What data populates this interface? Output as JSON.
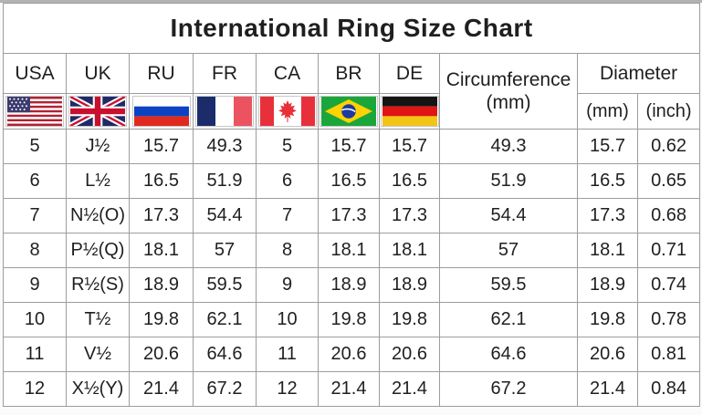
{
  "title": "International Ring Size Chart",
  "header": {
    "countries": [
      {
        "code": "USA",
        "flag_icon": "usa-flag-icon"
      },
      {
        "code": "UK",
        "flag_icon": "uk-flag-icon"
      },
      {
        "code": "RU",
        "flag_icon": "russia-flag-icon"
      },
      {
        "code": "FR",
        "flag_icon": "france-flag-icon"
      },
      {
        "code": "CA",
        "flag_icon": "canada-flag-icon"
      },
      {
        "code": "BR",
        "flag_icon": "brazil-flag-icon"
      },
      {
        "code": "DE",
        "flag_icon": "germany-flag-icon"
      }
    ],
    "circumference": {
      "label": "Circumference",
      "unit": "(mm)"
    },
    "diameter": {
      "label": "Diameter",
      "mm_unit": "(mm)",
      "inch_unit": "(inch)"
    }
  },
  "colors": {
    "border": "#9d9d9d",
    "text": "#1f1f1f",
    "background": "#fbfbfb"
  },
  "chart_data": {
    "type": "table",
    "title": "International Ring Size Chart",
    "columns": [
      "USA",
      "UK",
      "RU",
      "FR",
      "CA",
      "BR",
      "DE",
      "Circumference (mm)",
      "Diameter (mm)",
      "Diameter (inch)"
    ],
    "rows": [
      [
        "5",
        "J½",
        "15.7",
        "49.3",
        "5",
        "15.7",
        "15.7",
        "49.3",
        "15.7",
        "0.62"
      ],
      [
        "6",
        "L½",
        "16.5",
        "51.9",
        "6",
        "16.5",
        "16.5",
        "51.9",
        "16.5",
        "0.65"
      ],
      [
        "7",
        "N½(O)",
        "17.3",
        "54.4",
        "7",
        "17.3",
        "17.3",
        "54.4",
        "17.3",
        "0.68"
      ],
      [
        "8",
        "P½(Q)",
        "18.1",
        "57",
        "8",
        "18.1",
        "18.1",
        "57",
        "18.1",
        "0.71"
      ],
      [
        "9",
        "R½(S)",
        "18.9",
        "59.5",
        "9",
        "18.9",
        "18.9",
        "59.5",
        "18.9",
        "0.74"
      ],
      [
        "10",
        "T½",
        "19.8",
        "62.1",
        "10",
        "19.8",
        "19.8",
        "62.1",
        "19.8",
        "0.78"
      ],
      [
        "11",
        "V½",
        "20.6",
        "64.6",
        "11",
        "20.6",
        "20.6",
        "64.6",
        "20.6",
        "0.81"
      ],
      [
        "12",
        "X½(Y)",
        "21.4",
        "67.2",
        "12",
        "21.4",
        "21.4",
        "67.2",
        "21.4",
        "0.84"
      ]
    ]
  }
}
